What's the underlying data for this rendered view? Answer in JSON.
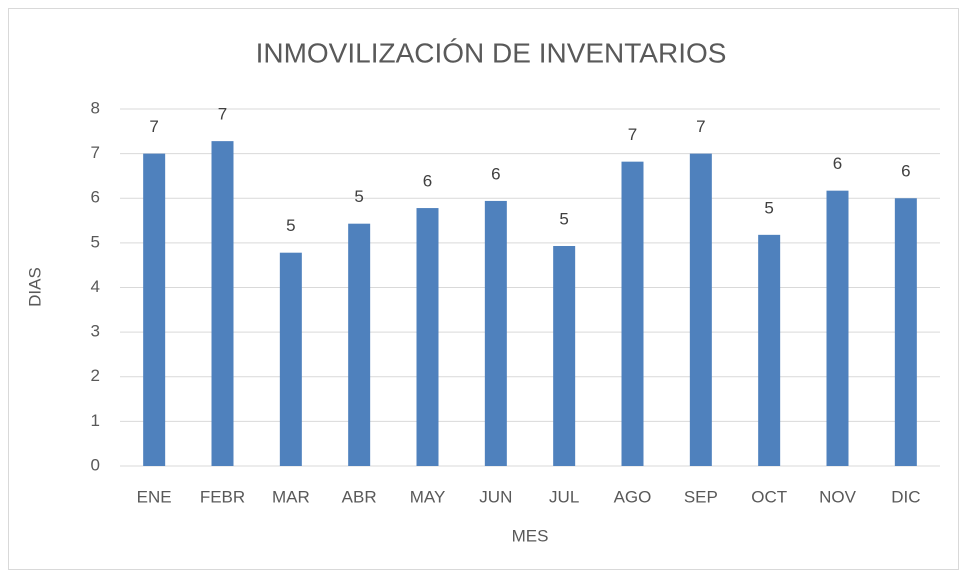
{
  "chart_data": {
    "type": "bar",
    "title": "INMOVILIZACIÓN DE INVENTARIOS",
    "x_label": "MES",
    "y_label": "DIAS",
    "categories": [
      "ENE",
      "FEBR",
      "MAR",
      "ABR",
      "MAY",
      "JUN",
      "JUL",
      "AGO",
      "SEP",
      "OCT",
      "NOV",
      "DIC"
    ],
    "values": [
      7.0,
      7.28,
      4.78,
      5.43,
      5.78,
      5.94,
      4.93,
      6.82,
      7.0,
      5.18,
      6.17,
      6.0
    ],
    "value_labels": [
      "7",
      "7",
      "5",
      "5",
      "6",
      "6",
      "5",
      "7",
      "7",
      "5",
      "6",
      "6"
    ],
    "color": "#4f81bd",
    "ylim": [
      0,
      8
    ],
    "yticks": [
      0,
      1,
      2,
      3,
      4,
      5,
      6,
      7,
      8
    ],
    "grid": true
  }
}
